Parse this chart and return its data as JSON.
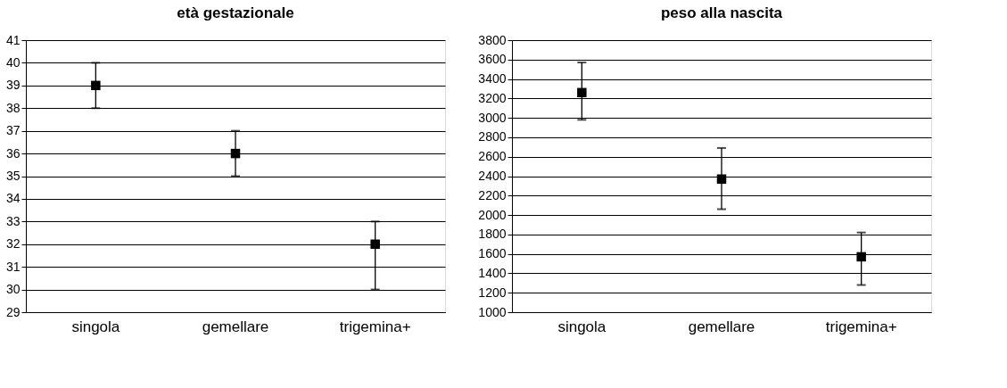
{
  "chart_data": [
    {
      "type": "scatter",
      "title": "età gestazionale",
      "categories": [
        "singola",
        "gemellare",
        "trigemina+"
      ],
      "series": [
        {
          "color": "#000000",
          "values": [
            39,
            36,
            32
          ],
          "errors": [
            [
              38,
              40
            ],
            [
              35,
              37
            ],
            [
              30,
              33
            ]
          ]
        }
      ],
      "ylim": [
        29,
        41
      ],
      "yticks": [
        29,
        30,
        31,
        32,
        33,
        34,
        35,
        36,
        37,
        38,
        39,
        40,
        41
      ],
      "grid": "y",
      "marker": "square"
    },
    {
      "type": "scatter",
      "title": "peso alla nascita",
      "categories": [
        "singola",
        "gemellare",
        "trigemina+"
      ],
      "series": [
        {
          "color": "#000000",
          "values": [
            3260,
            2370,
            1570
          ],
          "errors": [
            [
              2980,
              3570
            ],
            [
              2060,
              2690
            ],
            [
              1280,
              1820
            ]
          ]
        }
      ],
      "ylim": [
        1000,
        3800
      ],
      "yticks": [
        1000,
        1200,
        1400,
        1600,
        1800,
        2000,
        2200,
        2400,
        2600,
        2800,
        3000,
        3200,
        3400,
        3600,
        3800
      ],
      "grid": "y",
      "marker": "square"
    }
  ]
}
